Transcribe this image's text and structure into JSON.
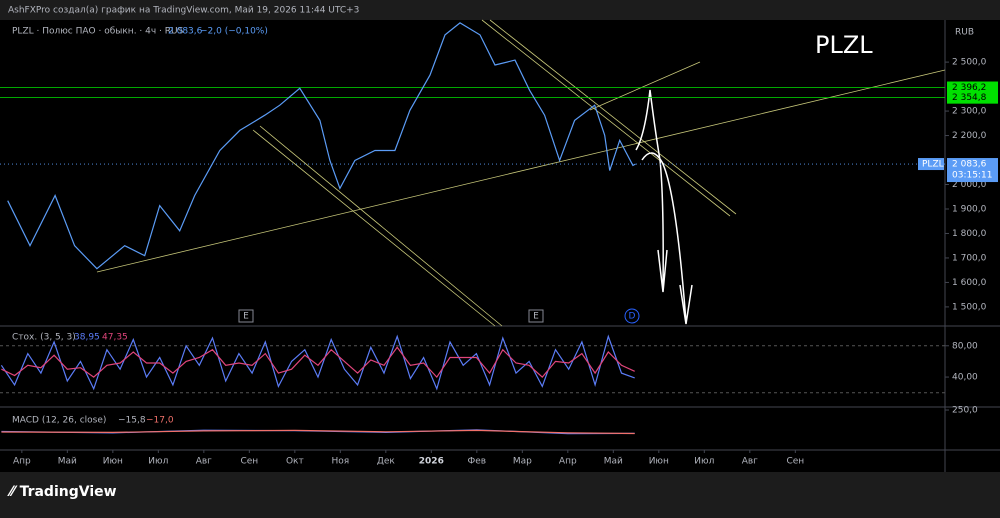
{
  "header": {
    "author_line": "AshFXPro создал(а) график на TradingView.com, Май 19, 2026 11:44 UTC+3",
    "logo": "TradingView",
    "currency": "RUB"
  },
  "markers": [
    "E",
    "E",
    "D"
  ],
  "chart_data": [
    {
      "type": "line",
      "title": "PLZL",
      "legend": "PLZL · Полюс ПАО · обыкн. · 4ч · RUS",
      "legend_value": "2 083,6",
      "legend_change": "−2,0 (−0,10%)",
      "x": [
        -0.31,
        0.18,
        0.73,
        1.16,
        1.65,
        2.26,
        2.7,
        3.03,
        3.47,
        3.8,
        4.35,
        4.79,
        5.34,
        5.67,
        6.11,
        6.55,
        6.77,
        6.99,
        7.32,
        7.76,
        8.2,
        8.53,
        8.97,
        9.3,
        9.63,
        10.07,
        10.4,
        10.84,
        11.16,
        11.49,
        11.82,
        12.15,
        12.59,
        12.81,
        12.92,
        13.14,
        13.43,
        13.49
      ],
      "series": [
        {
          "name": "PLZL",
          "color": "#5b9cf6",
          "values": [
            1934,
            1750,
            1955,
            1750,
            1656,
            1750,
            1709,
            1914,
            1811,
            1955,
            2139,
            2221,
            2283,
            2324,
            2393,
            2262,
            2098,
            1984,
            2098,
            2139,
            2139,
            2303,
            2447,
            2611,
            2660,
            2611,
            2488,
            2508,
            2385,
            2283,
            2098,
            2262,
            2324,
            2201,
            2057,
            2180,
            2078,
            2083.6
          ]
        }
      ],
      "xlim": [
        -0.48,
        20.29
      ],
      "xticks": [
        {
          "value": 0,
          "label": "Апр"
        },
        {
          "value": 1,
          "label": "Май"
        },
        {
          "value": 2,
          "label": "Июн"
        },
        {
          "value": 3,
          "label": "Июл"
        },
        {
          "value": 4,
          "label": "Авг"
        },
        {
          "value": 5,
          "label": "Сен"
        },
        {
          "value": 6,
          "label": "Окт"
        },
        {
          "value": 7,
          "label": "Ноя"
        },
        {
          "value": 8,
          "label": "Дек"
        },
        {
          "value": 9,
          "label": "2026"
        },
        {
          "value": 10,
          "label": "Фев"
        },
        {
          "value": 11,
          "label": "Мар"
        },
        {
          "value": 12,
          "label": "Апр"
        },
        {
          "value": 13,
          "label": "Май"
        },
        {
          "value": 14,
          "label": "Июн"
        },
        {
          "value": 15,
          "label": "Июл"
        },
        {
          "value": 16,
          "label": "Авг"
        },
        {
          "value": 17,
          "label": "Сен"
        }
      ],
      "ylim": [
        1422,
        2672
      ],
      "yticks": [
        {
          "value": 1500,
          "label": "1 500,0"
        },
        {
          "value": 1600,
          "label": "1 600,0"
        },
        {
          "value": 1700,
          "label": "1 700,0"
        },
        {
          "value": 1800,
          "label": "1 800,0"
        },
        {
          "value": 1900,
          "label": "1 900,0"
        },
        {
          "value": 2000,
          "label": "2 000,0"
        },
        {
          "value": 2200,
          "label": "2 200,0"
        },
        {
          "value": 2300,
          "label": "2 300,0"
        },
        {
          "value": 2500,
          "label": "2 500,0"
        }
      ],
      "levels": [
        {
          "value": 2396.2,
          "label": "2 396,2",
          "color": "#00e000"
        },
        {
          "value": 2354.8,
          "label": "2 354,8",
          "color": "#00e000"
        }
      ],
      "last_price": {
        "value": 2083.6,
        "label": "2 083,6",
        "countdown": "03:15:11",
        "color": "#5b9cf6"
      }
    },
    {
      "type": "line",
      "title": "Стох. (3, 5, 3)",
      "legend_values": [
        "38,95",
        "47,35"
      ],
      "x": [
        -0.45,
        -0.16,
        0.13,
        0.42,
        0.71,
        1.0,
        1.29,
        1.58,
        1.87,
        2.16,
        2.45,
        2.74,
        3.03,
        3.32,
        3.61,
        3.9,
        4.19,
        4.48,
        4.77,
        5.06,
        5.35,
        5.64,
        5.93,
        6.22,
        6.51,
        6.8,
        7.09,
        7.38,
        7.67,
        7.96,
        8.25,
        8.54,
        8.83,
        9.12,
        9.41,
        9.7,
        9.99,
        10.28,
        10.57,
        10.86,
        11.15,
        11.44,
        11.73,
        12.02,
        12.31,
        12.6,
        12.89,
        13.18,
        13.47
      ],
      "series": [
        {
          "name": "%K",
          "color": "#5b7cf6",
          "values": [
            55,
            30,
            70,
            45,
            85,
            35,
            60,
            25,
            75,
            50,
            88,
            40,
            65,
            30,
            80,
            55,
            90,
            35,
            70,
            45,
            85,
            28,
            60,
            75,
            40,
            88,
            50,
            30,
            78,
            45,
            92,
            38,
            65,
            25,
            85,
            55,
            70,
            30,
            90,
            45,
            60,
            28,
            75,
            50,
            85,
            30,
            92,
            45,
            38.95
          ]
        },
        {
          "name": "%D",
          "color": "#e0457b",
          "values": [
            50,
            42,
            55,
            52,
            68,
            50,
            52,
            40,
            55,
            58,
            72,
            58,
            58,
            45,
            60,
            65,
            75,
            55,
            58,
            55,
            70,
            45,
            50,
            68,
            55,
            75,
            60,
            45,
            62,
            55,
            78,
            55,
            58,
            40,
            65,
            65,
            65,
            45,
            75,
            58,
            55,
            40,
            60,
            58,
            70,
            45,
            72,
            55,
            47.35
          ]
        }
      ],
      "ylim": [
        3,
        104
      ],
      "yticks": [
        {
          "value": 40,
          "label": "40,00"
        },
        {
          "value": 80,
          "label": "80,00"
        }
      ],
      "bands": [
        20,
        80
      ]
    },
    {
      "type": "line",
      "title": "MACD (12, 26, close)",
      "legend_values": [
        "−15,8",
        "−17,0"
      ],
      "x": [
        -0.45,
        2,
        4,
        6,
        8,
        10,
        12,
        13.47
      ],
      "series": [
        {
          "name": "MACD",
          "color": "#5b7cf6",
          "values": [
            5,
            -10,
            20,
            15,
            -5,
            25,
            -20,
            -15.8
          ]
        },
        {
          "name": "Signal",
          "color": "#f0706a",
          "values": [
            0,
            -5,
            12,
            18,
            2,
            18,
            -10,
            -17
          ]
        }
      ],
      "ylim": [
        -205,
        273
      ],
      "yticks": [
        {
          "value": 250,
          "label": "250,0"
        }
      ]
    }
  ]
}
